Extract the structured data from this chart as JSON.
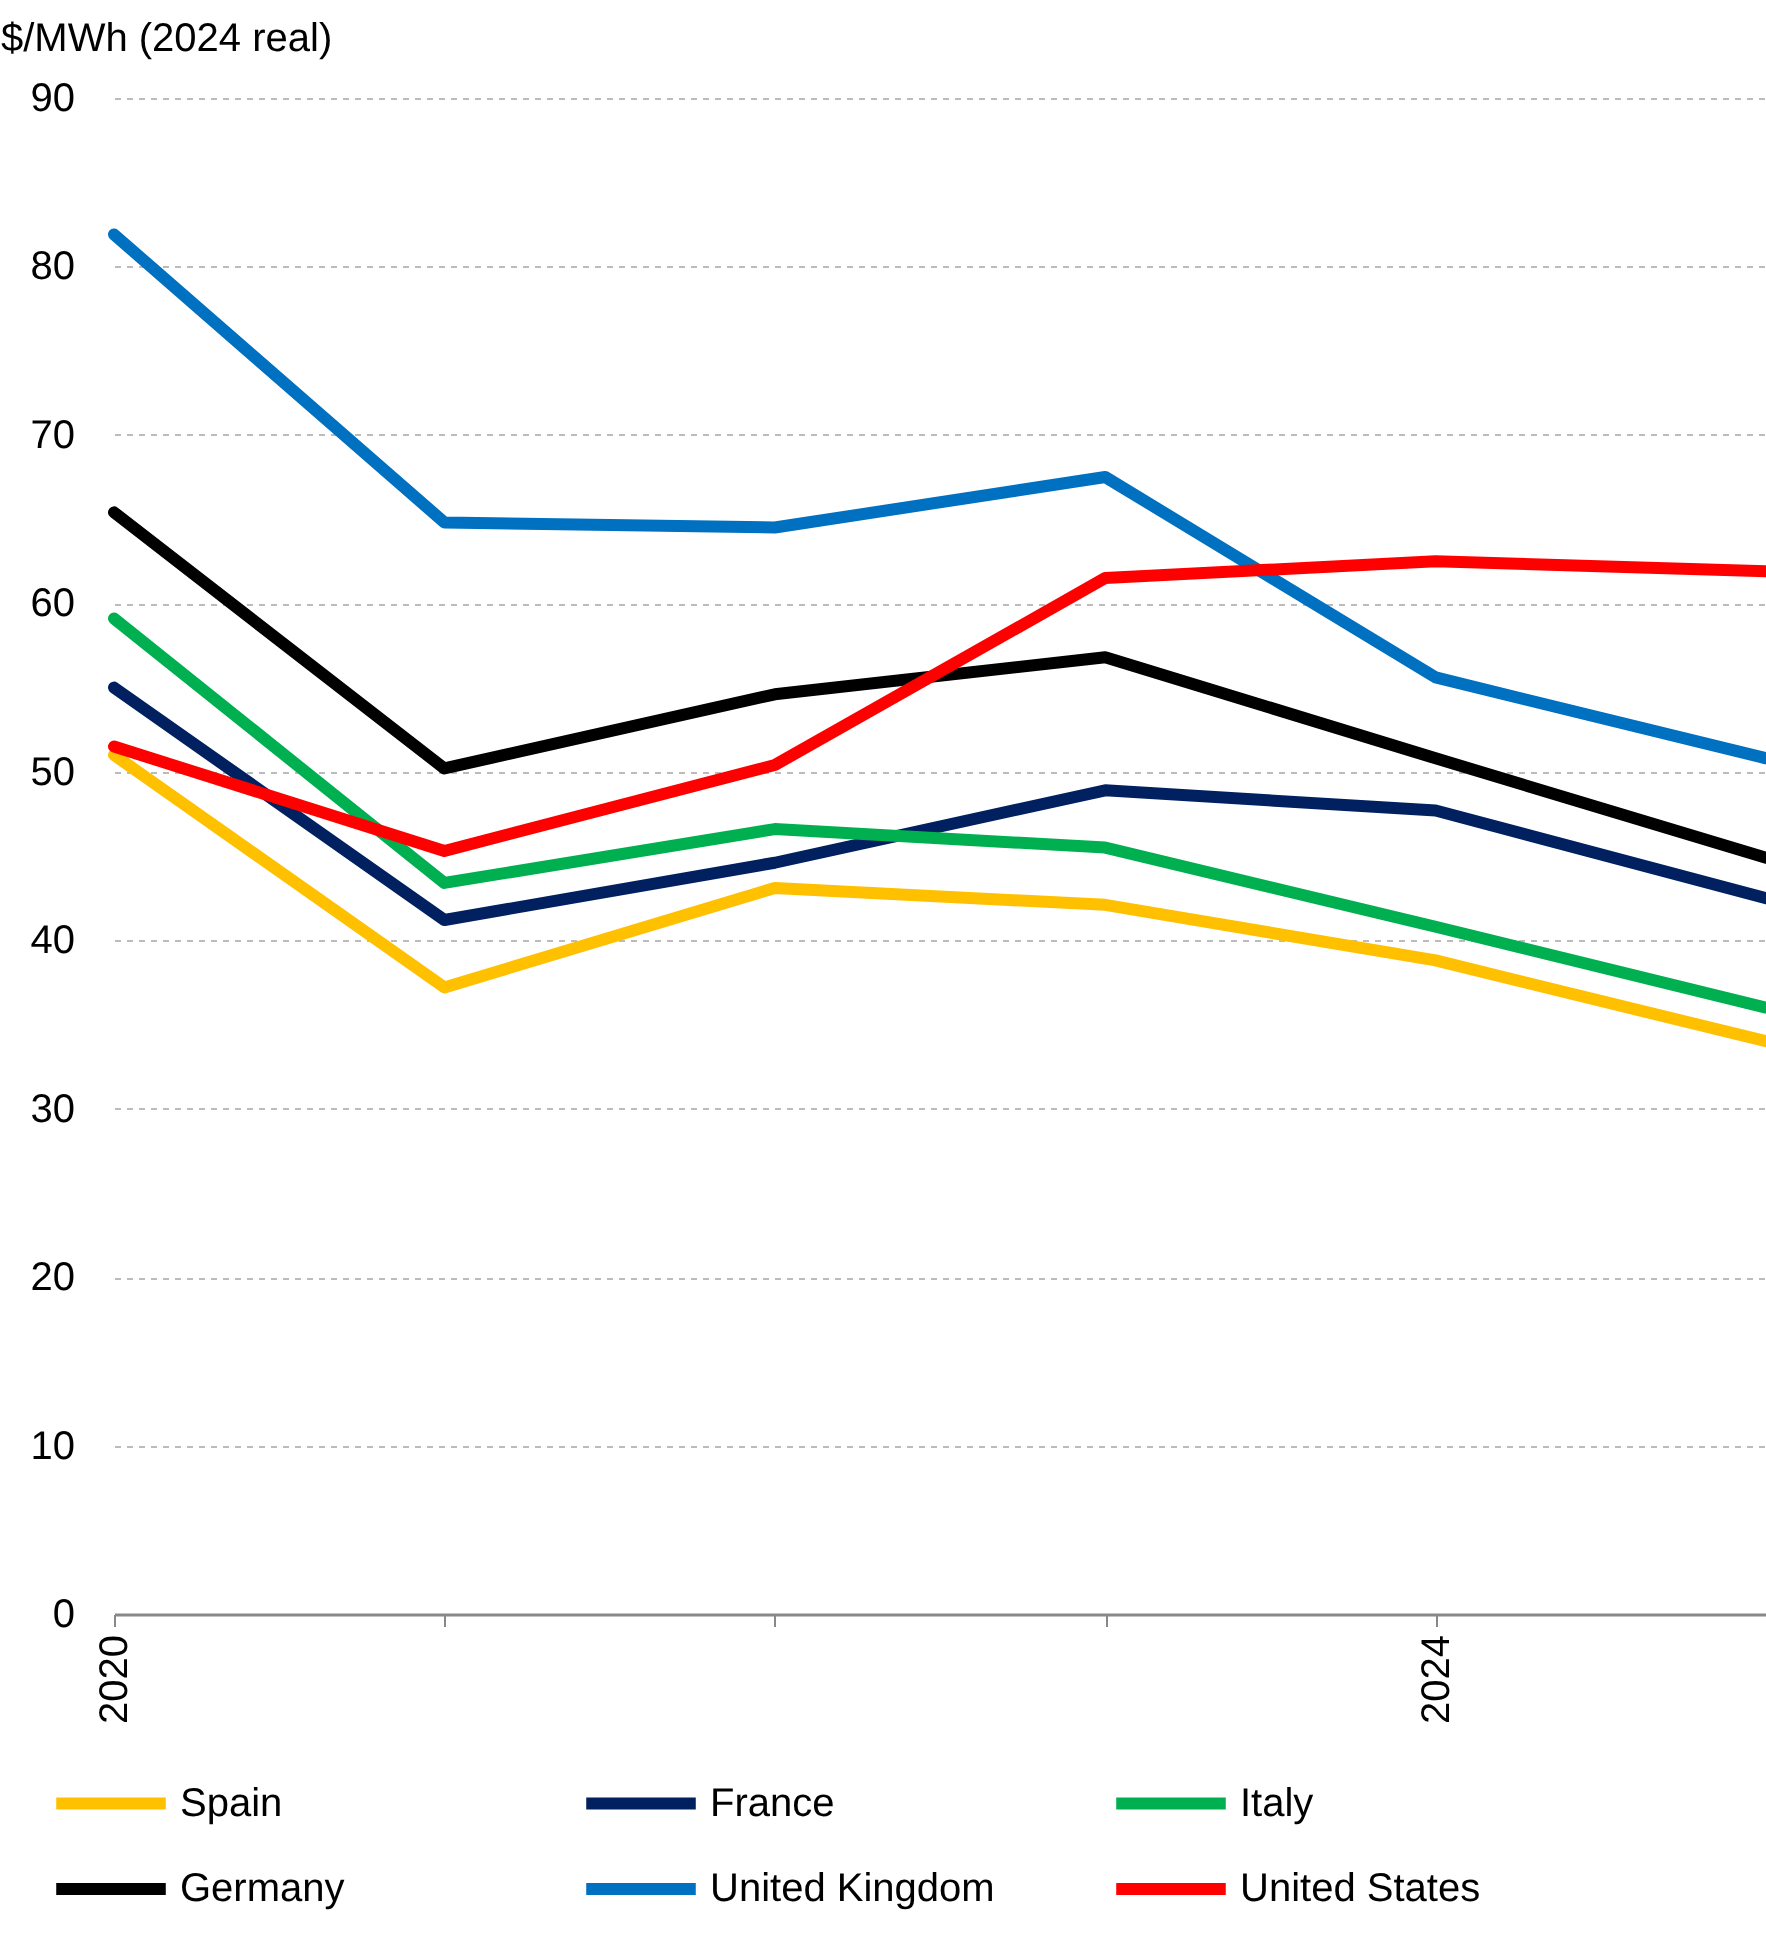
{
  "chart_data": {
    "type": "line",
    "ylabel": "$/MWh (2024 real)",
    "x": [
      2020,
      2021,
      2022,
      2023,
      2024,
      2025
    ],
    "xlim": [
      2020,
      2025
    ],
    "xticks": [
      2020,
      {
        "value": 2021,
        "label": null
      },
      {
        "value": 2022,
        "label": null
      },
      {
        "value": 2023,
        "label": null
      },
      2024,
      {
        "value": 2025,
        "label": null
      }
    ],
    "ylim": [
      0,
      90
    ],
    "yticks": [
      0,
      10,
      20,
      30,
      40,
      50,
      60,
      70,
      80,
      90
    ],
    "grid": "y",
    "legend": "bottom",
    "marker": "none",
    "line_style": "solid",
    "series": [
      {
        "name": "Spain",
        "color": "#ffc000",
        "values": [
          51.0,
          37.2,
          43.1,
          42.1,
          38.8,
          34.0
        ]
      },
      {
        "name": "France",
        "color": "#002060",
        "values": [
          55.0,
          41.2,
          44.6,
          48.9,
          47.7,
          42.5
        ]
      },
      {
        "name": "Italy",
        "color": "#00b050",
        "values": [
          59.1,
          43.4,
          46.6,
          45.5,
          40.8,
          36.0
        ]
      },
      {
        "name": "Germany",
        "color": "#000000",
        "values": [
          65.4,
          50.2,
          54.6,
          56.8,
          50.8,
          44.9
        ]
      },
      {
        "name": "United Kingdom",
        "color": "#0070c0",
        "values": [
          81.9,
          64.8,
          64.5,
          67.5,
          55.6,
          50.8
        ]
      },
      {
        "name": "United States",
        "color": "#ff0000",
        "values": [
          51.5,
          45.3,
          50.4,
          61.5,
          62.5,
          61.9
        ]
      }
    ]
  }
}
